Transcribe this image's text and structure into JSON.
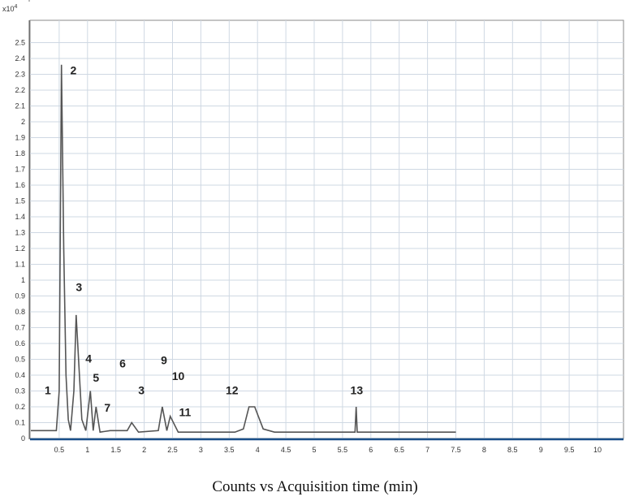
{
  "chart_data": {
    "type": "line",
    "title": "",
    "scale_label": "x10",
    "scale_exponent": "4",
    "xlabel": "Counts vs Acquisition time (min)",
    "ylabel": "",
    "xlim": [
      0,
      10.4
    ],
    "ylim": [
      0,
      2.6
    ],
    "x_ticks": [
      "0.5",
      "1",
      "1.5",
      "2",
      "2.5",
      "3",
      "3.5",
      "4",
      "4.5",
      "5",
      "5.5",
      "6",
      "6.5",
      "7",
      "7.5",
      "8",
      "8.5",
      "9",
      "9.5",
      "10"
    ],
    "y_ticks": [
      "0",
      "0.1",
      "0.2",
      "0.3",
      "0.4",
      "0.5",
      "0.6",
      "0.7",
      "0.8",
      "0.9",
      "1",
      "1.1",
      "1.2",
      "1.3",
      "1.4",
      "1.5",
      "1.6",
      "1.7",
      "1.8",
      "1.9",
      "2",
      "2.1",
      "2.2",
      "2.3",
      "2.4",
      "2.5"
    ],
    "grid": true,
    "series": [
      {
        "values": [
          [
            0.0,
            0.05
          ],
          [
            0.45,
            0.05
          ],
          [
            0.5,
            0.3
          ],
          [
            0.54,
            2.36
          ],
          [
            0.58,
            1.2
          ],
          [
            0.62,
            0.4
          ],
          [
            0.66,
            0.12
          ],
          [
            0.7,
            0.05
          ],
          [
            0.76,
            0.3
          ],
          [
            0.8,
            0.78
          ],
          [
            0.85,
            0.45
          ],
          [
            0.9,
            0.12
          ],
          [
            0.97,
            0.05
          ],
          [
            1.05,
            0.3
          ],
          [
            1.1,
            0.05
          ],
          [
            1.15,
            0.2
          ],
          [
            1.22,
            0.04
          ],
          [
            1.4,
            0.05
          ],
          [
            1.7,
            0.05
          ],
          [
            1.78,
            0.1
          ],
          [
            1.9,
            0.04
          ],
          [
            2.25,
            0.05
          ],
          [
            2.32,
            0.2
          ],
          [
            2.4,
            0.05
          ],
          [
            2.46,
            0.14
          ],
          [
            2.6,
            0.04
          ],
          [
            3.6,
            0.04
          ],
          [
            3.75,
            0.06
          ],
          [
            3.85,
            0.2
          ],
          [
            3.95,
            0.2
          ],
          [
            4.1,
            0.06
          ],
          [
            4.3,
            0.04
          ],
          [
            5.72,
            0.04
          ],
          [
            5.74,
            0.2
          ],
          [
            5.76,
            0.04
          ],
          [
            7.5,
            0.04
          ]
        ]
      }
    ],
    "annotations": [
      {
        "label": "1",
        "x": 0.3,
        "y": 0.28
      },
      {
        "label": "2",
        "x": 0.75,
        "y": 2.3
      },
      {
        "label": "3",
        "x": 0.85,
        "y": 0.93
      },
      {
        "label": "4",
        "x": 1.02,
        "y": 0.48
      },
      {
        "label": "5",
        "x": 1.15,
        "y": 0.36
      },
      {
        "label": "6",
        "x": 1.62,
        "y": 0.45
      },
      {
        "label": "7",
        "x": 1.35,
        "y": 0.17
      },
      {
        "label": "3",
        "x": 1.95,
        "y": 0.28
      },
      {
        "label": "9",
        "x": 2.35,
        "y": 0.47
      },
      {
        "label": "10",
        "x": 2.6,
        "y": 0.37
      },
      {
        "label": "11",
        "x": 2.72,
        "y": 0.14
      },
      {
        "label": "12",
        "x": 3.55,
        "y": 0.28
      },
      {
        "label": "13",
        "x": 5.75,
        "y": 0.28
      }
    ]
  }
}
